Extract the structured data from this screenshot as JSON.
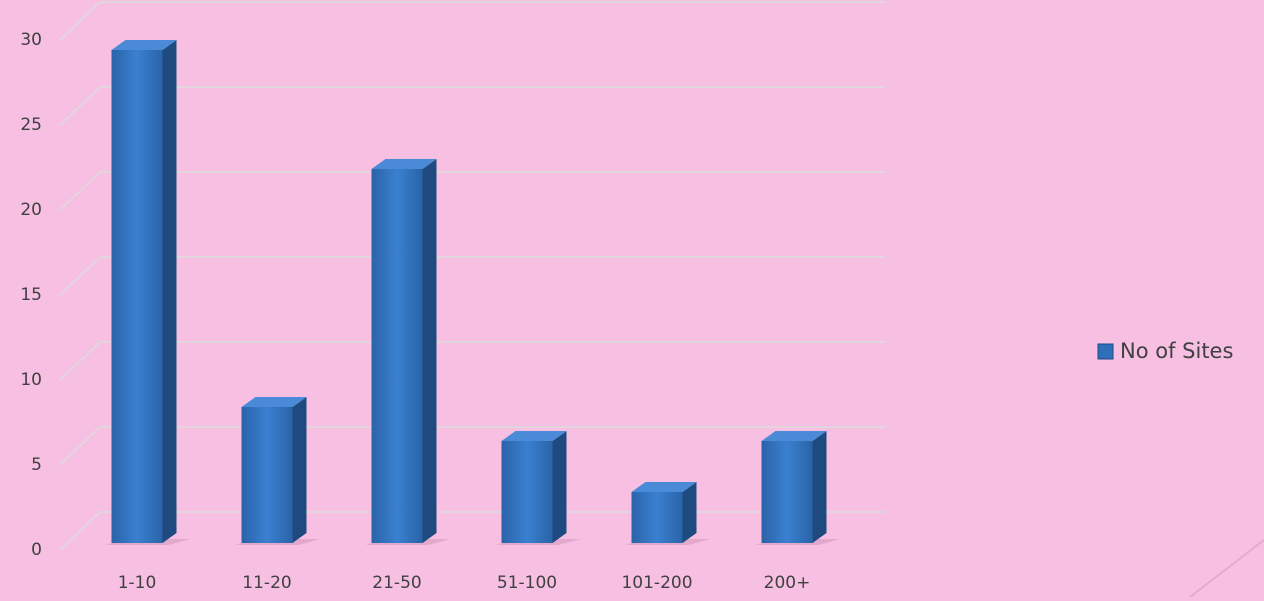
{
  "chart_data": {
    "type": "bar3d",
    "categories": [
      "1-10",
      "11-20",
      "21-50",
      "51-100",
      "101-200",
      "200+"
    ],
    "series": [
      {
        "name": "No of Sites",
        "color": "#2f6eb8",
        "values": [
          29,
          8,
          22,
          6,
          3,
          6
        ]
      }
    ],
    "ylim": [
      0,
      30
    ],
    "yticks": [
      0,
      5,
      10,
      15,
      20,
      25,
      30
    ],
    "grid": true,
    "legend": "right"
  }
}
